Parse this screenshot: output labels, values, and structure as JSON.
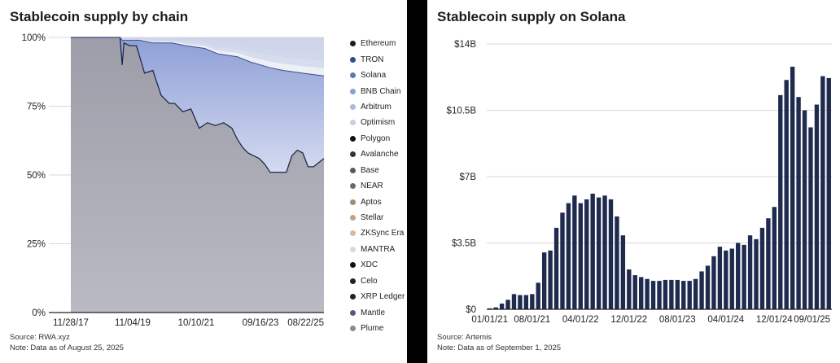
{
  "left": {
    "title": "Stablecoin supply by chain",
    "source": "Source: RWA.xyz",
    "note": "Note: Data as of August 25, 2025"
  },
  "right": {
    "title": "Stablecoin supply on Solana",
    "source": "Source: Artemis",
    "note": "Note: Data as of September 1, 2025"
  },
  "chart_data": [
    {
      "type": "area",
      "stacked": true,
      "normalized": true,
      "title": "Stablecoin supply by chain",
      "xlabel": "",
      "ylabel": "",
      "ylim": [
        0,
        100
      ],
      "yticks": [
        "100%",
        "75%",
        "50%",
        "25%",
        "0%"
      ],
      "xticks": [
        "11/28/17",
        "11/04/19",
        "10/10/21",
        "09/16/23",
        "08/22/25"
      ],
      "x_range": [
        "2017-11-28",
        "2025-08-25"
      ],
      "legend_position": "right",
      "series": [
        {
          "name": "Ethereum",
          "color": "#9a9ba6"
        },
        {
          "name": "TRON",
          "color": "#a8b4d6"
        },
        {
          "name": "Solana",
          "color": "#c5cde8"
        },
        {
          "name": "BNB Chain",
          "color": "#d6dbee"
        },
        {
          "name": "Arbitrum",
          "color": "#e2e6f4"
        },
        {
          "name": "Optimism",
          "color": "#eaedf6"
        },
        {
          "name": "Polygon",
          "color": "#e6e2de"
        },
        {
          "name": "Avalanche",
          "color": "#ded8d2"
        },
        {
          "name": "Base",
          "color": "#d6ccc1"
        },
        {
          "name": "NEAR",
          "color": "#cfc1b2"
        },
        {
          "name": "Aptos",
          "color": "#c9b8a5"
        },
        {
          "name": "Stellar",
          "color": "#d1b9a1"
        },
        {
          "name": "ZKSync Era",
          "color": "#dcc7b2"
        },
        {
          "name": "MANTRA",
          "color": "#e6dad0"
        },
        {
          "name": "XDC",
          "color": "#1a1a1a"
        },
        {
          "name": "Celo",
          "color": "#2a2a2a"
        },
        {
          "name": "XRP Ledger",
          "color": "#2f2f3a"
        },
        {
          "name": "Mantle",
          "color": "#5a5a78"
        },
        {
          "name": "Plume",
          "color": "#8a8a96"
        }
      ],
      "ethereum_share": {
        "x": [
          "2017-11-28",
          "2019-06-01",
          "2019-06-25",
          "2019-07-15",
          "2019-09-15",
          "2019-12-01",
          "2020-03-01",
          "2020-06-01",
          "2020-09-01",
          "2020-12-01",
          "2021-02-01",
          "2021-05-01",
          "2021-08-01",
          "2021-11-01",
          "2022-02-01",
          "2022-05-01",
          "2022-08-01",
          "2022-11-01",
          "2023-01-01",
          "2023-03-01",
          "2023-05-01",
          "2023-07-01",
          "2023-09-01",
          "2023-11-01",
          "2024-01-01",
          "2024-03-01",
          "2024-05-01",
          "2024-07-01",
          "2024-09-01",
          "2024-11-01",
          "2025-01-01",
          "2025-03-01",
          "2025-05-01",
          "2025-08-25"
        ],
        "values": [
          100,
          100,
          90,
          98,
          97,
          97,
          87,
          88,
          79,
          76,
          76,
          73,
          74,
          67,
          69,
          68,
          69,
          67,
          63,
          60,
          58,
          57,
          56,
          54,
          51,
          51,
          51,
          51,
          57,
          59,
          58,
          53,
          53,
          56
        ]
      },
      "tron_top_share": {
        "x": [
          "2017-11-28",
          "2019-06-01",
          "2019-06-25",
          "2020-01-01",
          "2020-06-01",
          "2021-01-01",
          "2021-06-01",
          "2022-01-01",
          "2022-06-01",
          "2023-01-01",
          "2023-06-01",
          "2024-01-01",
          "2024-06-01",
          "2025-01-01",
          "2025-08-25"
        ],
        "values": [
          100,
          100,
          99,
          99,
          98,
          98,
          97,
          96,
          94,
          93,
          91,
          89,
          88,
          87,
          86
        ]
      }
    },
    {
      "type": "bar",
      "title": "Stablecoin supply on Solana",
      "xlabel": "",
      "ylabel": "",
      "ylim": [
        0,
        14
      ],
      "yticks": [
        "$14B",
        "$10.5B",
        "$7B",
        "$3.5B",
        "$0"
      ],
      "xticks": [
        "01/01/21",
        "08/01/21",
        "04/01/22",
        "12/01/22",
        "08/01/23",
        "04/01/24",
        "12/01/24",
        "09/01/25"
      ],
      "unit": "$B",
      "categories": [
        "01/21",
        "02/21",
        "03/21",
        "04/21",
        "05/21",
        "06/21",
        "07/21",
        "08/21",
        "09/21",
        "10/21",
        "11/21",
        "12/21",
        "01/22",
        "02/22",
        "03/22",
        "04/22",
        "05/22",
        "06/22",
        "07/22",
        "08/22",
        "09/22",
        "10/22",
        "11/22",
        "12/22",
        "01/23",
        "02/23",
        "03/23",
        "04/23",
        "05/23",
        "06/23",
        "07/23",
        "08/23",
        "09/23",
        "10/23",
        "11/23",
        "12/23",
        "01/24",
        "02/24",
        "03/24",
        "04/24",
        "05/24",
        "06/24",
        "07/24",
        "08/24",
        "09/24",
        "10/24",
        "11/24",
        "12/24",
        "01/25",
        "02/25",
        "03/25",
        "04/25",
        "05/25",
        "06/25",
        "07/25",
        "08/25",
        "09/25"
      ],
      "values": [
        0.05,
        0.1,
        0.3,
        0.5,
        0.8,
        0.75,
        0.75,
        0.8,
        1.4,
        3,
        3.1,
        4.3,
        5.1,
        5.6,
        6,
        5.6,
        5.8,
        6.1,
        5.9,
        6,
        5.8,
        4.9,
        3.9,
        2.1,
        1.8,
        1.7,
        1.6,
        1.5,
        1.5,
        1.55,
        1.55,
        1.55,
        1.5,
        1.5,
        1.6,
        2,
        2.3,
        2.8,
        3.3,
        3.1,
        3.2,
        3.5,
        3.4,
        3.9,
        3.7,
        4.3,
        4.8,
        5.4,
        11.3,
        12.1,
        12.8,
        11.2,
        10.5,
        9.6,
        10.8,
        12.3,
        12.2
      ]
    }
  ]
}
